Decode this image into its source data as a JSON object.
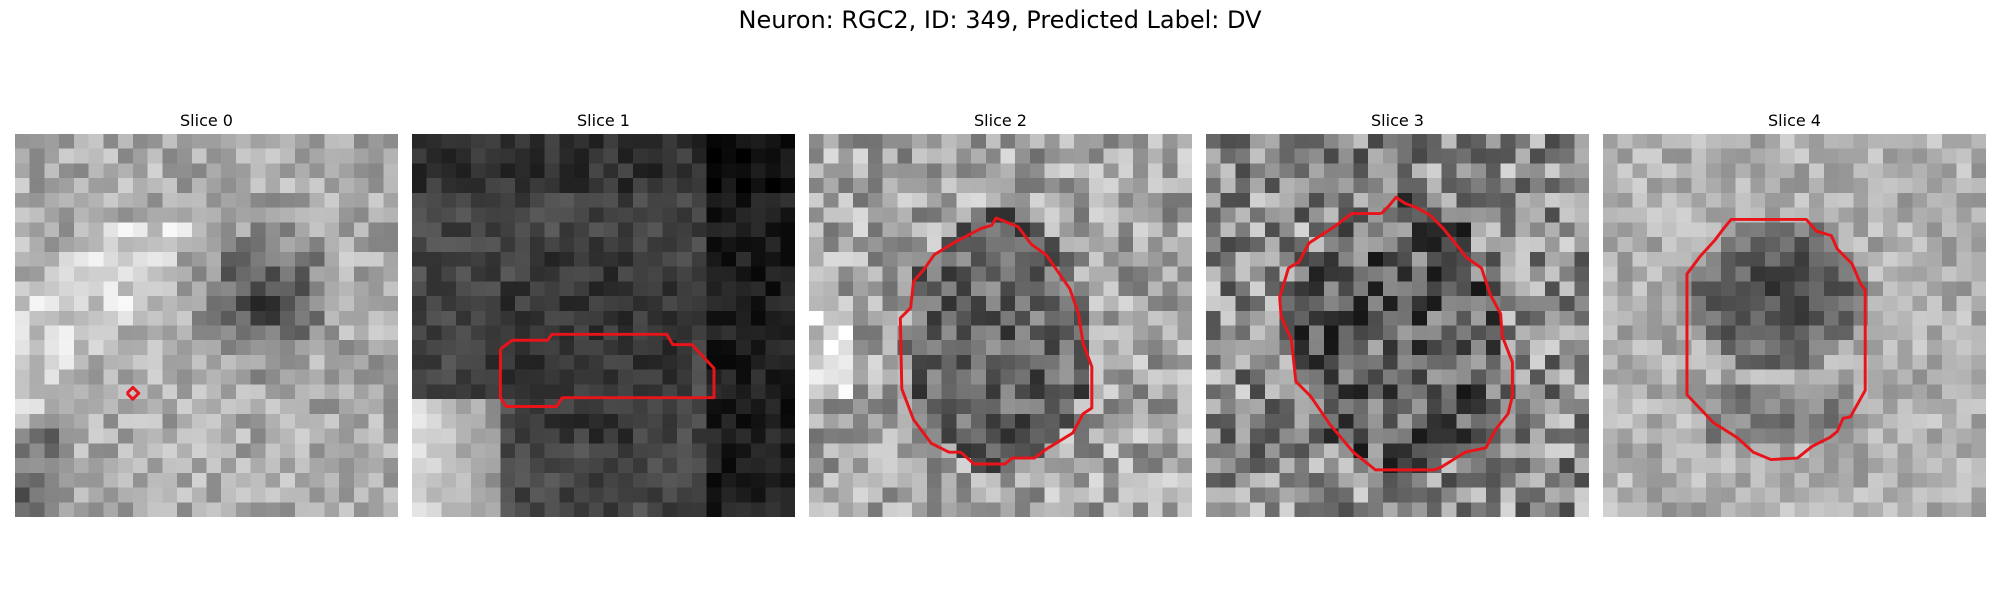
{
  "figure": {
    "title": "Neuron: RGC2, ID: 349, Predicted Label: DV",
    "contour_color": "#e8141a",
    "colormap": "gray",
    "axes": "off"
  },
  "panels": [
    {
      "title": "Slice 0",
      "grid": 26,
      "seed": 11,
      "base": "slice0",
      "contour": [
        [
          7.6,
          17.6
        ],
        [
          8,
          17.2
        ],
        [
          8.4,
          17.6
        ],
        [
          8,
          18
        ],
        [
          7.6,
          17.6
        ]
      ]
    },
    {
      "title": "Slice 1",
      "grid": 26,
      "seed": 23,
      "base": "slice1",
      "contour": [
        [
          6,
          14.6
        ],
        [
          6.8,
          14
        ],
        [
          9.2,
          14
        ],
        [
          9.5,
          13.6
        ],
        [
          17.3,
          13.6
        ],
        [
          17.7,
          14.3
        ],
        [
          19,
          14.3
        ],
        [
          20.5,
          15.9
        ],
        [
          20.5,
          17.9
        ],
        [
          10.2,
          17.9
        ],
        [
          9.8,
          18.5
        ],
        [
          6.4,
          18.5
        ],
        [
          6,
          17.9
        ],
        [
          6,
          14.6
        ]
      ]
    },
    {
      "title": "Slice 2",
      "grid": 26,
      "seed": 37,
      "base": "slice2",
      "contour": [
        [
          11.7,
          6.4
        ],
        [
          12.4,
          6.2
        ],
        [
          12.7,
          5.7
        ],
        [
          13.2,
          5.9
        ],
        [
          14.2,
          6.3
        ],
        [
          15.1,
          7.5
        ],
        [
          16.1,
          8.2
        ],
        [
          17.7,
          10.5
        ],
        [
          18.3,
          12.2
        ],
        [
          18.6,
          14.2
        ],
        [
          19.2,
          15.8
        ],
        [
          19.2,
          18.6
        ],
        [
          18.6,
          19
        ],
        [
          17.9,
          20.3
        ],
        [
          16.1,
          21.4
        ],
        [
          15.3,
          22
        ],
        [
          13.8,
          22
        ],
        [
          13.3,
          22.4
        ],
        [
          11.2,
          22.4
        ],
        [
          10.3,
          21.6
        ],
        [
          9.5,
          21.6
        ],
        [
          8.3,
          21
        ],
        [
          7.1,
          19.4
        ],
        [
          6.3,
          17.3
        ],
        [
          6.2,
          12.5
        ],
        [
          6.9,
          11.8
        ],
        [
          7.1,
          10
        ],
        [
          7.8,
          9.2
        ],
        [
          8.5,
          8.2
        ],
        [
          9.8,
          7.4
        ],
        [
          11.7,
          6.4
        ]
      ]
    },
    {
      "title": "Slice 3",
      "grid": 26,
      "seed": 53,
      "base": "slice3",
      "contour": [
        [
          11.9,
          5.4
        ],
        [
          12.4,
          4.9
        ],
        [
          12.9,
          4.3
        ],
        [
          13.5,
          4.7
        ],
        [
          14.3,
          5
        ],
        [
          15.2,
          5.5
        ],
        [
          16.1,
          6.4
        ],
        [
          17.7,
          8.4
        ],
        [
          18.7,
          9.1
        ],
        [
          19.3,
          10.9
        ],
        [
          20,
          12.2
        ],
        [
          20.1,
          13.7
        ],
        [
          20.8,
          15.5
        ],
        [
          20.8,
          17.8
        ],
        [
          20.5,
          19
        ],
        [
          19.7,
          20
        ],
        [
          19,
          21.3
        ],
        [
          17.6,
          21.6
        ],
        [
          16,
          22.6
        ],
        [
          15.5,
          22.8
        ],
        [
          13.5,
          22.8
        ],
        [
          13.1,
          22.8
        ],
        [
          11.5,
          22.8
        ],
        [
          10,
          21.6
        ],
        [
          8.4,
          19.7
        ],
        [
          7.1,
          17.8
        ],
        [
          6.1,
          16.8
        ],
        [
          5.8,
          14
        ],
        [
          5.1,
          12.4
        ],
        [
          5,
          11.1
        ],
        [
          5.6,
          9.1
        ],
        [
          6.3,
          8.7
        ],
        [
          7,
          7.4
        ],
        [
          8.7,
          6.3
        ],
        [
          9.9,
          5.4
        ],
        [
          11.9,
          5.4
        ]
      ]
    },
    {
      "title": "Slice 4",
      "grid": 26,
      "seed": 71,
      "base": "slice4",
      "contour": [
        [
          8.2,
          6.4
        ],
        [
          8.7,
          5.8
        ],
        [
          13.8,
          5.8
        ],
        [
          14.5,
          6.6
        ],
        [
          15.5,
          6.9
        ],
        [
          15.9,
          7.8
        ],
        [
          16.9,
          8.8
        ],
        [
          17.5,
          10.2
        ],
        [
          17.8,
          10.6
        ],
        [
          17.8,
          17.4
        ],
        [
          16.8,
          19.2
        ],
        [
          16.3,
          19.3
        ],
        [
          15.9,
          20.2
        ],
        [
          15.4,
          20.6
        ],
        [
          14.2,
          21.2
        ],
        [
          13.2,
          22
        ],
        [
          11.4,
          22.1
        ],
        [
          10.2,
          21.6
        ],
        [
          9.1,
          20.6
        ],
        [
          7.5,
          19.6
        ],
        [
          5.7,
          17.7
        ],
        [
          5.7,
          9.5
        ],
        [
          6.6,
          8.3
        ],
        [
          7.6,
          7.2
        ],
        [
          8.2,
          6.4
        ]
      ]
    }
  ]
}
